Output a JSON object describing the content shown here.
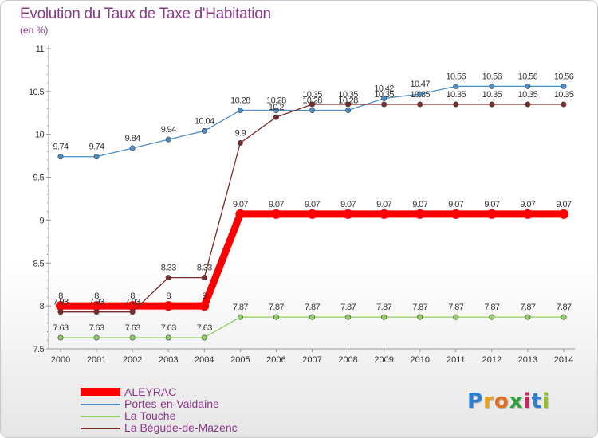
{
  "chart_data": {
    "type": "line",
    "title": "Evolution du Taux de Taxe d'Habitation",
    "subtitle": "(en %)",
    "x": [
      "2000",
      "2001",
      "2002",
      "2003",
      "2004",
      "2005",
      "2006",
      "2007",
      "2008",
      "2009",
      "2010",
      "2011",
      "2012",
      "2013",
      "2014"
    ],
    "ylim": [
      7.5,
      11
    ],
    "yticks": [
      "7.5",
      "8",
      "8.5",
      "9",
      "9.5",
      "10",
      "10.5",
      "11"
    ],
    "grid": false,
    "legend_position": "bottom-left",
    "series": [
      {
        "name": "ALEYRAC",
        "color": "#ff0000",
        "values": [
          8,
          8,
          8,
          8,
          8,
          9.07,
          9.07,
          9.07,
          9.07,
          9.07,
          9.07,
          9.07,
          9.07,
          9.07,
          9.07
        ],
        "labels": [
          "8",
          "8",
          "8",
          "8",
          "8",
          "9.07",
          "9.07",
          "9.07",
          "9.07",
          "9.07",
          "9.07",
          "9.07",
          "9.07",
          "9.07",
          "9.07"
        ]
      },
      {
        "name": "Portes-en-Valdaine",
        "color": "#4a8ec8",
        "values": [
          9.74,
          9.74,
          9.84,
          9.94,
          10.04,
          10.28,
          10.28,
          10.28,
          10.28,
          10.42,
          10.47,
          10.56,
          10.56,
          10.56,
          10.56
        ],
        "labels": [
          "9.74",
          "9.74",
          "9.84",
          "9.94",
          "10.04",
          "10.28",
          "10.28",
          "10.28",
          "10.28",
          "10.42",
          "10.47",
          "10.56",
          "10.56",
          "10.56",
          "10.56"
        ]
      },
      {
        "name": "La Touche",
        "color": "#90d060",
        "values": [
          7.63,
          7.63,
          7.63,
          7.63,
          7.63,
          7.87,
          7.87,
          7.87,
          7.87,
          7.87,
          7.87,
          7.87,
          7.87,
          7.87,
          7.87
        ],
        "labels": [
          "7.63",
          "7.63",
          "7.63",
          "7.63",
          "7.63",
          "7.87",
          "7.87",
          "7.87",
          "7.87",
          "7.87",
          "7.87",
          "7.87",
          "7.87",
          "7.87",
          "7.87"
        ]
      },
      {
        "name": "La Bégude-de-Mazenc",
        "color": "#7a2a2a",
        "values": [
          7.93,
          7.93,
          7.93,
          8.33,
          8.33,
          9.9,
          10.2,
          10.35,
          10.35,
          10.35,
          10.35,
          10.35,
          10.35,
          10.35,
          10.35
        ],
        "labels": [
          "7.93",
          "7.93",
          "7.93",
          "8.33",
          "8.33",
          "9.9",
          "10.2",
          "10.35",
          "10.35",
          "10.35",
          "10.35",
          "10.35",
          "10.35",
          "10.35",
          "10.35"
        ]
      }
    ]
  },
  "logo": {
    "letters": [
      "P",
      "r",
      "o",
      "x",
      "i",
      "t",
      "i"
    ],
    "colors": [
      "#2a7fd0",
      "#e8a020",
      "#e07020",
      "#30a040",
      "#d02060",
      "#2a7fd0",
      "#90c020"
    ]
  }
}
